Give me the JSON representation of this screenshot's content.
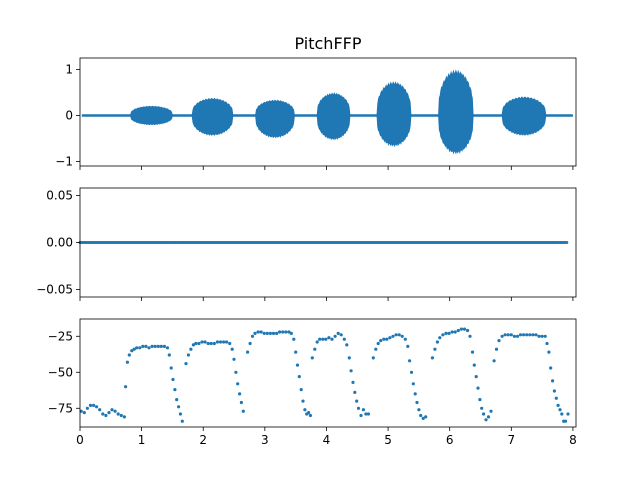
{
  "chart_data": [
    {
      "type": "line",
      "title": "PitchFFP",
      "xlabel": "",
      "ylabel": "",
      "xlim": [
        0,
        8.05
      ],
      "ylim": [
        -1.1,
        1.25
      ],
      "yticks": [
        1,
        0,
        -1
      ],
      "ytick_labels": [
        "1",
        "0",
        "−1"
      ],
      "xticks": [
        0,
        1,
        2,
        3,
        4,
        5,
        6,
        7,
        8
      ],
      "show_xtick_labels": false,
      "color": "#1f77b4",
      "grid": false,
      "segments": [
        {
          "start": 0.82,
          "end": 1.5,
          "pos": 0.2,
          "neg": -0.2
        },
        {
          "start": 1.82,
          "end": 2.48,
          "pos": 0.37,
          "neg": -0.43
        },
        {
          "start": 2.85,
          "end": 3.48,
          "pos": 0.33,
          "neg": -0.48
        },
        {
          "start": 3.85,
          "end": 4.38,
          "pos": 0.48,
          "neg": -0.52
        },
        {
          "start": 4.82,
          "end": 5.37,
          "pos": 0.72,
          "neg": -0.66
        },
        {
          "start": 5.82,
          "end": 6.38,
          "pos": 0.97,
          "neg": -0.82
        },
        {
          "start": 6.85,
          "end": 7.56,
          "pos": 0.4,
          "neg": -0.43
        }
      ]
    },
    {
      "type": "scatter",
      "xlim": [
        0,
        8.05
      ],
      "ylim": [
        -0.058,
        0.058
      ],
      "yticks": [
        0.05,
        0.0,
        -0.05
      ],
      "ytick_labels": [
        "0.05",
        "0.00",
        "−0.05"
      ],
      "xticks": [
        0,
        1,
        2,
        3,
        4,
        5,
        6,
        7,
        8
      ],
      "show_xtick_labels": false,
      "color": "#1f77b4",
      "grid": false,
      "x_range": [
        0,
        7.9
      ],
      "y_value": 0.0
    },
    {
      "type": "scatter",
      "xlim": [
        0,
        8.05
      ],
      "ylim": [
        -88,
        -13
      ],
      "yticks": [
        -25,
        -50,
        -75
      ],
      "ytick_labels": [
        "−25",
        "−50",
        "−75"
      ],
      "xticks": [
        0,
        1,
        2,
        3,
        4,
        5,
        6,
        7,
        8
      ],
      "xtick_labels": [
        "0",
        "1",
        "2",
        "3",
        "4",
        "5",
        "6",
        "7",
        "8"
      ],
      "color": "#1f77b4",
      "grid": false,
      "points": [
        [
          0.02,
          -77
        ],
        [
          0.07,
          -78
        ],
        [
          0.12,
          -75
        ],
        [
          0.17,
          -73
        ],
        [
          0.22,
          -73
        ],
        [
          0.27,
          -74
        ],
        [
          0.32,
          -76
        ],
        [
          0.37,
          -79
        ],
        [
          0.42,
          -80
        ],
        [
          0.47,
          -78
        ],
        [
          0.52,
          -76
        ],
        [
          0.57,
          -77
        ],
        [
          0.62,
          -79
        ],
        [
          0.67,
          -80
        ],
        [
          0.72,
          -81
        ],
        [
          0.74,
          -60
        ],
        [
          0.77,
          -43
        ],
        [
          0.8,
          -38
        ],
        [
          0.84,
          -35
        ],
        [
          0.88,
          -34
        ],
        [
          0.92,
          -33
        ],
        [
          0.97,
          -33
        ],
        [
          1.02,
          -32
        ],
        [
          1.07,
          -32
        ],
        [
          1.12,
          -33
        ],
        [
          1.17,
          -32
        ],
        [
          1.22,
          -32
        ],
        [
          1.27,
          -32
        ],
        [
          1.32,
          -32
        ],
        [
          1.37,
          -32
        ],
        [
          1.42,
          -33
        ],
        [
          1.45,
          -38
        ],
        [
          1.48,
          -47
        ],
        [
          1.51,
          -55
        ],
        [
          1.54,
          -62
        ],
        [
          1.57,
          -69
        ],
        [
          1.6,
          -74
        ],
        [
          1.63,
          -79
        ],
        [
          1.66,
          -84
        ],
        [
          1.72,
          -44
        ],
        [
          1.76,
          -38
        ],
        [
          1.8,
          -34
        ],
        [
          1.84,
          -31
        ],
        [
          1.88,
          -30
        ],
        [
          1.93,
          -30
        ],
        [
          1.98,
          -29
        ],
        [
          2.03,
          -29
        ],
        [
          2.08,
          -30
        ],
        [
          2.13,
          -30
        ],
        [
          2.18,
          -30
        ],
        [
          2.23,
          -29
        ],
        [
          2.28,
          -29
        ],
        [
          2.33,
          -29
        ],
        [
          2.38,
          -29
        ],
        [
          2.43,
          -30
        ],
        [
          2.47,
          -34
        ],
        [
          2.5,
          -41
        ],
        [
          2.53,
          -50
        ],
        [
          2.56,
          -58
        ],
        [
          2.59,
          -65
        ],
        [
          2.62,
          -71
        ],
        [
          2.65,
          -77
        ],
        [
          2.72,
          -36
        ],
        [
          2.76,
          -30
        ],
        [
          2.8,
          -25
        ],
        [
          2.84,
          -23
        ],
        [
          2.89,
          -22
        ],
        [
          2.94,
          -22
        ],
        [
          2.99,
          -23
        ],
        [
          3.04,
          -23
        ],
        [
          3.09,
          -23
        ],
        [
          3.14,
          -23
        ],
        [
          3.19,
          -23
        ],
        [
          3.24,
          -22
        ],
        [
          3.29,
          -22
        ],
        [
          3.34,
          -22
        ],
        [
          3.39,
          -22
        ],
        [
          3.43,
          -23
        ],
        [
          3.47,
          -27
        ],
        [
          3.5,
          -36
        ],
        [
          3.53,
          -45
        ],
        [
          3.56,
          -53
        ],
        [
          3.59,
          -62
        ],
        [
          3.62,
          -70
        ],
        [
          3.65,
          -76
        ],
        [
          3.68,
          -79
        ],
        [
          3.71,
          -78
        ],
        [
          3.74,
          -80
        ],
        [
          3.77,
          -40
        ],
        [
          3.81,
          -34
        ],
        [
          3.85,
          -29
        ],
        [
          3.89,
          -27
        ],
        [
          3.94,
          -27
        ],
        [
          3.99,
          -27
        ],
        [
          4.04,
          -26
        ],
        [
          4.09,
          -27
        ],
        [
          4.14,
          -25
        ],
        [
          4.19,
          -23
        ],
        [
          4.24,
          -24
        ],
        [
          4.29,
          -27
        ],
        [
          4.33,
          -31
        ],
        [
          4.37,
          -40
        ],
        [
          4.4,
          -49
        ],
        [
          4.43,
          -57
        ],
        [
          4.46,
          -64
        ],
        [
          4.49,
          -70
        ],
        [
          4.52,
          -75
        ],
        [
          4.56,
          -80
        ],
        [
          4.6,
          -76
        ],
        [
          4.64,
          -79
        ],
        [
          4.68,
          -79
        ],
        [
          4.76,
          -40
        ],
        [
          4.8,
          -34
        ],
        [
          4.84,
          -30
        ],
        [
          4.88,
          -28
        ],
        [
          4.93,
          -27
        ],
        [
          4.98,
          -27
        ],
        [
          5.03,
          -26
        ],
        [
          5.08,
          -25
        ],
        [
          5.13,
          -24
        ],
        [
          5.18,
          -24
        ],
        [
          5.23,
          -25
        ],
        [
          5.28,
          -27
        ],
        [
          5.32,
          -32
        ],
        [
          5.35,
          -42
        ],
        [
          5.38,
          -50
        ],
        [
          5.41,
          -58
        ],
        [
          5.44,
          -65
        ],
        [
          5.47,
          -71
        ],
        [
          5.5,
          -76
        ],
        [
          5.53,
          -80
        ],
        [
          5.57,
          -82
        ],
        [
          5.61,
          -81
        ],
        [
          5.72,
          -40
        ],
        [
          5.76,
          -34
        ],
        [
          5.8,
          -29
        ],
        [
          5.84,
          -26
        ],
        [
          5.89,
          -24
        ],
        [
          5.94,
          -23
        ],
        [
          5.99,
          -23
        ],
        [
          6.04,
          -22
        ],
        [
          6.09,
          -22
        ],
        [
          6.14,
          -21
        ],
        [
          6.19,
          -20
        ],
        [
          6.24,
          -20
        ],
        [
          6.29,
          -21
        ],
        [
          6.33,
          -25
        ],
        [
          6.37,
          -36
        ],
        [
          6.4,
          -45
        ],
        [
          6.43,
          -53
        ],
        [
          6.46,
          -61
        ],
        [
          6.49,
          -69
        ],
        [
          6.52,
          -75
        ],
        [
          6.55,
          -79
        ],
        [
          6.59,
          -83
        ],
        [
          6.63,
          -81
        ],
        [
          6.67,
          -77
        ],
        [
          6.72,
          -42
        ],
        [
          6.76,
          -34
        ],
        [
          6.8,
          -28
        ],
        [
          6.85,
          -25
        ],
        [
          6.9,
          -24
        ],
        [
          6.95,
          -24
        ],
        [
          7.0,
          -24
        ],
        [
          7.05,
          -25
        ],
        [
          7.1,
          -25
        ],
        [
          7.15,
          -24
        ],
        [
          7.2,
          -24
        ],
        [
          7.25,
          -24
        ],
        [
          7.3,
          -24
        ],
        [
          7.35,
          -24
        ],
        [
          7.4,
          -24
        ],
        [
          7.45,
          -25
        ],
        [
          7.5,
          -25
        ],
        [
          7.55,
          -25
        ],
        [
          7.58,
          -30
        ],
        [
          7.61,
          -36
        ],
        [
          7.64,
          -47
        ],
        [
          7.67,
          -56
        ],
        [
          7.7,
          -63
        ],
        [
          7.73,
          -68
        ],
        [
          7.76,
          -73
        ],
        [
          7.79,
          -76
        ],
        [
          7.82,
          -79
        ],
        [
          7.85,
          -84
        ],
        [
          7.88,
          -84
        ],
        [
          7.92,
          -79
        ]
      ]
    }
  ]
}
